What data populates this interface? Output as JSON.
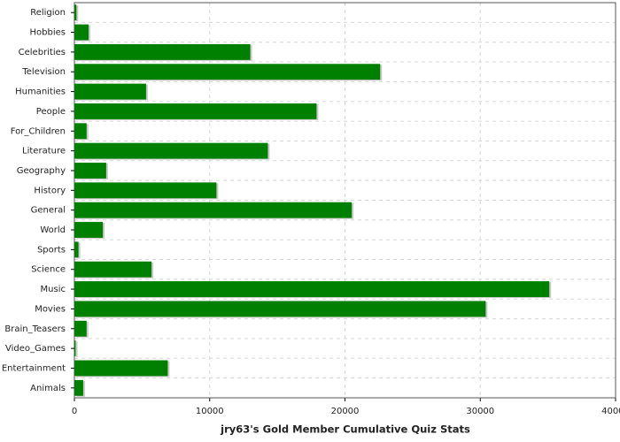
{
  "chart_data": {
    "type": "barh",
    "title": "jry63's Gold Member Cumulative Quiz Stats",
    "categories": [
      "Religion",
      "Hobbies",
      "Celebrities",
      "Television",
      "Humanities",
      "People",
      "For_Children",
      "Literature",
      "Geography",
      "History",
      "General",
      "World",
      "Sports",
      "Science",
      "Music",
      "Movies",
      "Brain_Teasers",
      "Video_Games",
      "Entertainment",
      "Animals"
    ],
    "values": [
      150,
      1050,
      13000,
      22600,
      5300,
      17900,
      900,
      14300,
      2350,
      10500,
      20500,
      2100,
      300,
      5700,
      35100,
      30400,
      900,
      100,
      6900,
      650
    ],
    "color": "#008000",
    "xlim": [
      0,
      40000
    ],
    "xticks": [
      0,
      10000,
      20000,
      30000,
      40000
    ],
    "grid": true
  }
}
